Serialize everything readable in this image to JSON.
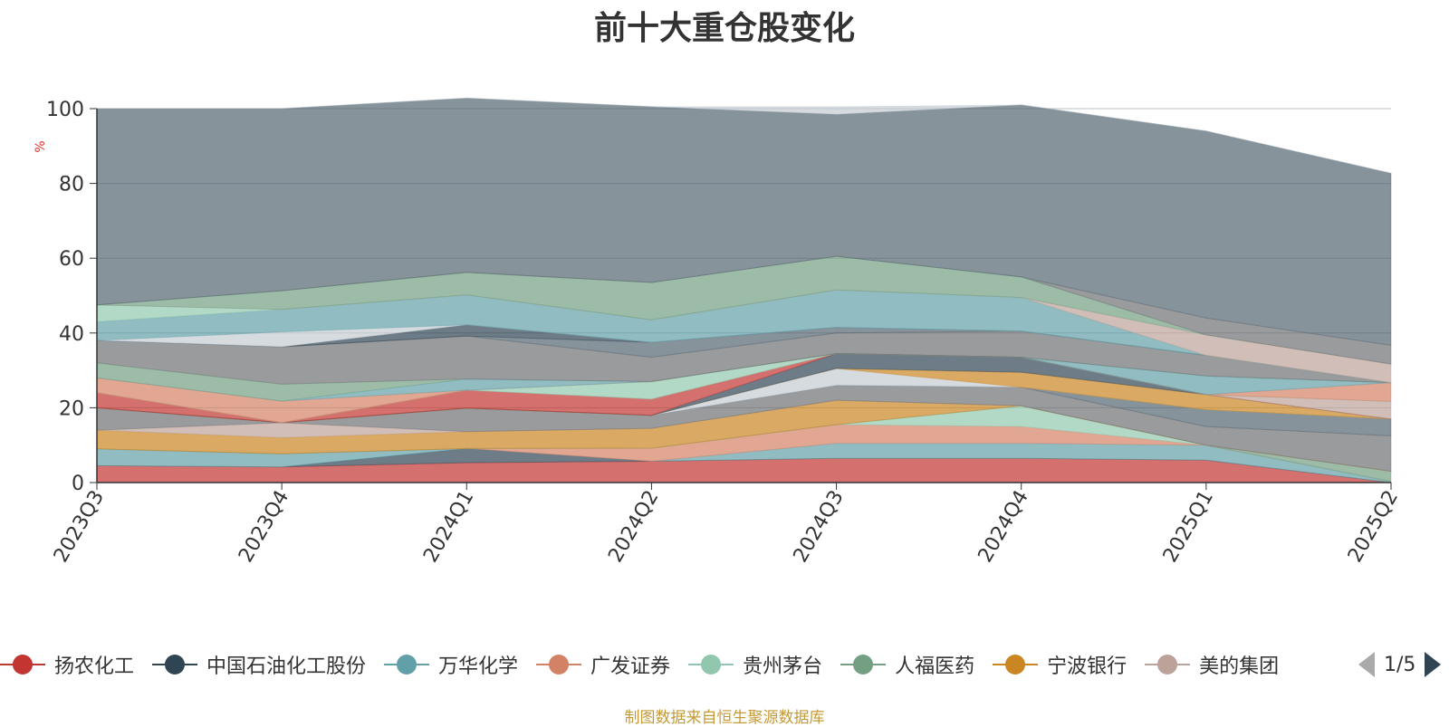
{
  "title": "前十大重仓股变化",
  "source_note": "制图数据来自恒生聚源数据库",
  "legend": {
    "page_indicator": "1/5"
  },
  "chart_data": {
    "type": "area",
    "stacked": true,
    "title": "前十大重仓股变化",
    "ylabel": "%",
    "ylim": [
      0,
      100
    ],
    "yticks": [
      0,
      20,
      40,
      60,
      80,
      100
    ],
    "grid": true,
    "legend_position": "bottom",
    "categories": [
      "2023Q3",
      "2023Q4",
      "2024Q1",
      "2024Q2",
      "2024Q3",
      "2024Q4",
      "2025Q1",
      "2025Q2"
    ],
    "series": [
      {
        "name": "扬农化工",
        "color": "#c23531",
        "values": [
          4.5,
          4.2,
          5.3,
          5.7,
          6.5,
          6.5,
          6.0,
          0.0
        ]
      },
      {
        "name": "中国石油化工股份",
        "color": "#2f4554",
        "values": [
          0.0,
          0.0,
          3.8,
          0.0,
          0.0,
          0.0,
          0.0,
          0.0
        ]
      },
      {
        "name": "万华化学",
        "color": "#61a0a8",
        "values": [
          4.5,
          3.5,
          0.0,
          0.0,
          4.0,
          4.0,
          4.0,
          0.3
        ]
      },
      {
        "name": "广发证券",
        "color": "#d48265",
        "values": [
          0.0,
          0.0,
          0.0,
          3.5,
          5.0,
          4.5,
          0.0,
          0.0
        ]
      },
      {
        "name": "贵州茅台",
        "color": "#91c7ae",
        "values": [
          0.0,
          0.0,
          0.0,
          0.0,
          0.0,
          5.5,
          0.0,
          0.0
        ]
      },
      {
        "name": "人福医药",
        "color": "#749f83",
        "values": [
          0.0,
          0.0,
          0.0,
          0.0,
          0.0,
          0.0,
          0.0,
          2.7
        ]
      },
      {
        "name": "宁波银行",
        "color": "#ca8622",
        "values": [
          5.0,
          4.3,
          4.5,
          5.3,
          6.5,
          0.0,
          0.0,
          0.0
        ]
      },
      {
        "name": "美的集团",
        "color": "#bda29a",
        "values": [
          0.0,
          4.0,
          0.0,
          0.0,
          0.0,
          0.0,
          0.0,
          0.0
        ]
      },
      {
        "name": "",
        "color": "#6e7074",
        "values": [
          6.0,
          0.0,
          6.3,
          3.5,
          4.0,
          5.0,
          5.0,
          9.5
        ]
      },
      {
        "name": "",
        "color": "#546570",
        "values": [
          0.0,
          0.0,
          0.0,
          0.0,
          0.0,
          0.0,
          4.5,
          4.5
        ]
      },
      {
        "name": "",
        "color": "#c4ccd3",
        "values": [
          0.0,
          0.0,
          0.0,
          0.0,
          4.5,
          0.0,
          0.0,
          0.0
        ]
      },
      {
        "name": "",
        "color": "#ca8622",
        "values": [
          0.0,
          0.0,
          0.0,
          0.0,
          0.0,
          4.0,
          4.0,
          0.0
        ]
      },
      {
        "name": "",
        "color": "#2f4554",
        "values": [
          0.0,
          0.0,
          0.0,
          0.0,
          4.0,
          4.0,
          0.0,
          0.0
        ]
      },
      {
        "name": "",
        "color": "#c23531",
        "values": [
          4.0,
          0.0,
          4.8,
          4.3,
          0.0,
          0.0,
          0.0,
          0.0
        ]
      },
      {
        "name": "",
        "color": "#bda29a",
        "values": [
          0.0,
          0.0,
          0.0,
          0.0,
          0.0,
          0.0,
          0.0,
          4.7
        ]
      },
      {
        "name": "",
        "color": "#91c7ae",
        "values": [
          0.0,
          0.0,
          0.0,
          4.7,
          0.0,
          0.0,
          0.0,
          0.0
        ]
      },
      {
        "name": "",
        "color": "#d48265",
        "values": [
          4.0,
          5.8,
          0.0,
          0.0,
          0.0,
          0.0,
          0.0,
          5.0
        ]
      },
      {
        "name": "",
        "color": "#61a0a8",
        "values": [
          0.0,
          0.0,
          3.0,
          0.0,
          0.0,
          0.0,
          5.0,
          0.0
        ]
      },
      {
        "name": "",
        "color": "#749f83",
        "values": [
          4.0,
          4.5,
          0.0,
          0.0,
          0.0,
          0.0,
          0.0,
          0.0
        ]
      },
      {
        "name": "",
        "color": "#6e7074",
        "values": [
          6.0,
          10.0,
          11.5,
          6.5,
          5.5,
          7.0,
          5.5,
          0.0
        ]
      },
      {
        "name": "",
        "color": "#546570",
        "values": [
          0.0,
          0.0,
          0.0,
          4.0,
          1.5,
          0.0,
          0.0,
          0.0
        ]
      },
      {
        "name": "",
        "color": "#2f4554",
        "values": [
          0.0,
          0.0,
          3.0,
          0.0,
          0.0,
          0.0,
          0.0,
          0.0
        ]
      },
      {
        "name": "",
        "color": "#c4ccd3",
        "values": [
          0.0,
          4.0,
          0.0,
          0.0,
          0.0,
          0.0,
          0.0,
          0.0
        ]
      },
      {
        "name": "",
        "color": "#61a0a8",
        "values": [
          5.0,
          6.0,
          8.0,
          6.0,
          10.0,
          9.0,
          0.0,
          0.0
        ]
      },
      {
        "name": "",
        "color": "#91c7ae",
        "values": [
          4.5,
          0.0,
          0.0,
          0.0,
          0.0,
          0.0,
          0.0,
          0.0
        ]
      },
      {
        "name": "",
        "color": "#bda29a",
        "values": [
          0.0,
          0.0,
          0.0,
          0.0,
          0.0,
          0.0,
          5.5,
          5.0
        ]
      },
      {
        "name": "",
        "color": "#749f83",
        "values": [
          0.0,
          5.0,
          6.0,
          10.0,
          9.0,
          5.5,
          0.0,
          0.0
        ]
      },
      {
        "name": "",
        "color": "#6e7074",
        "values": [
          0.0,
          0.0,
          0.0,
          0.0,
          0.0,
          0.0,
          4.5,
          5.0
        ]
      },
      {
        "name": "",
        "color": "#546570",
        "values": [
          52.5,
          48.7,
          46.6,
          47.0,
          38.0,
          46.0,
          50.0,
          46.0
        ]
      },
      {
        "name": "",
        "color": "#c4ccd3",
        "values": [
          0.0,
          0.0,
          0.0,
          0.0,
          2.0,
          0.0,
          0.0,
          0.0
        ]
      }
    ]
  }
}
